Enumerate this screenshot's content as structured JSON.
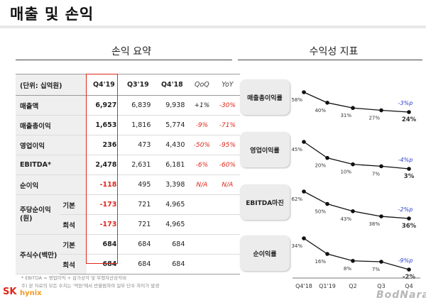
{
  "page": {
    "title": "매출 및 손익"
  },
  "left_section": {
    "title": "손익 요약"
  },
  "right_section": {
    "title": "수익성 지표"
  },
  "table": {
    "unit_label": "(단위: 십억원)",
    "headers": [
      "Q4'19",
      "Q3'19",
      "Q4'18",
      "QoQ",
      "YoY"
    ],
    "rows": [
      {
        "label": "매출액",
        "q4_19": "6,927",
        "q3_19": "6,839",
        "q4_18": "9,938",
        "qoq": "+1%",
        "yoy": "-30%"
      },
      {
        "label": "매출총이익",
        "q4_19": "1,653",
        "q3_19": "1,816",
        "q4_18": "5,774",
        "qoq": "-9%",
        "yoy": "-71%"
      },
      {
        "label": "영업이익",
        "q4_19": "236",
        "q3_19": "473",
        "q4_18": "4,430",
        "qoq": "-50%",
        "yoy": "-95%"
      },
      {
        "label": "EBITDA*",
        "q4_19": "2,478",
        "q3_19": "2,631",
        "q4_18": "6,181",
        "qoq": "-6%",
        "yoy": "-60%"
      },
      {
        "label": "순이익",
        "q4_19": "-118",
        "q3_19": "495",
        "q4_18": "3,398",
        "qoq": "N/A",
        "yoy": "N/A"
      }
    ],
    "eps": {
      "label": "주당순이익(원)",
      "label_line1": "주당순이익",
      "label_line2": "(원)",
      "rows": [
        {
          "sub": "기본",
          "q4_19": "-173",
          "q3_19": "721",
          "q4_18": "4,965"
        },
        {
          "sub": "희석",
          "q4_19": "-173",
          "q3_19": "721",
          "q4_18": "4,965"
        }
      ]
    },
    "shares": {
      "label": "주식수(백만)",
      "rows": [
        {
          "sub": "기본",
          "q4_19": "684",
          "q3_19": "684",
          "q4_18": "684"
        },
        {
          "sub": "희석",
          "q4_19": "684",
          "q3_19": "684",
          "q4_18": "684"
        }
      ]
    }
  },
  "footnotes": [
    "* EBITDA = 영업이익 + 감가상각 및 무형자산상각비",
    "주) 본 자료의 모든 수치는 '억원'에서 반올림하여 일부 단수 차이가 발생"
  ],
  "logo": {
    "sk": "SK",
    "hynix": "hynix"
  },
  "watermark": "BodNara",
  "chart_data": {
    "type": "line",
    "categories": [
      "Q4'18",
      "Q1'19",
      "Q2",
      "Q3",
      "Q4"
    ],
    "series": [
      {
        "name": "매출총이익률",
        "values": [
          58,
          40,
          31,
          27,
          24
        ],
        "labels": [
          "58%",
          "40%",
          "31%",
          "27%",
          "24%"
        ],
        "change": "-3%p"
      },
      {
        "name": "영업이익률",
        "values": [
          45,
          20,
          10,
          7,
          3
        ],
        "labels": [
          "45%",
          "20%",
          "10%",
          "7%",
          "3%"
        ],
        "change": "-4%p"
      },
      {
        "name": "EBITDA마진",
        "values": [
          62,
          50,
          43,
          38,
          36
        ],
        "labels": [
          "62%",
          "50%",
          "43%",
          "38%",
          "36%"
        ],
        "change": "-2%p"
      },
      {
        "name": "순이익률",
        "values": [
          34,
          16,
          8,
          7,
          -2
        ],
        "labels": [
          "34%",
          "16%",
          "8%",
          "7%",
          "-2%"
        ],
        "change": "-9%p"
      }
    ],
    "change_color": "#2a3fc9",
    "line_color": "#111111"
  }
}
